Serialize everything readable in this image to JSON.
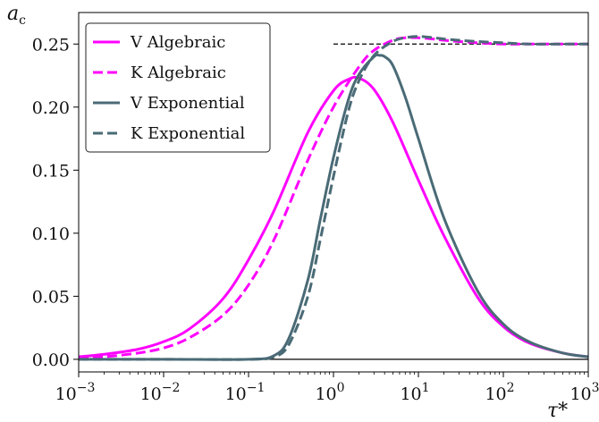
{
  "chart_data": {
    "type": "line",
    "x_scale": "log",
    "xlim": [
      0.001,
      1000
    ],
    "ylim": [
      -0.01,
      0.275
    ],
    "grid": false,
    "xlabel": "τ*",
    "ylabel": "a",
    "ylabel_subscript": "c",
    "x_ticks": [
      {
        "value": 0.001,
        "base": "10",
        "exp": "−3"
      },
      {
        "value": 0.01,
        "base": "10",
        "exp": "−2"
      },
      {
        "value": 0.1,
        "base": "10",
        "exp": "−1"
      },
      {
        "value": 1,
        "base": "10",
        "exp": "0"
      },
      {
        "value": 10,
        "base": "10",
        "exp": "1"
      },
      {
        "value": 100,
        "base": "10",
        "exp": "2"
      },
      {
        "value": 1000,
        "base": "10",
        "exp": "3"
      }
    ],
    "y_ticks": [
      {
        "value": 0.0,
        "label": "0.00"
      },
      {
        "value": 0.05,
        "label": "0.05"
      },
      {
        "value": 0.1,
        "label": "0.10"
      },
      {
        "value": 0.15,
        "label": "0.15"
      },
      {
        "value": 0.2,
        "label": "0.20"
      },
      {
        "value": 0.25,
        "label": "0.25"
      }
    ],
    "reference_lines": [
      {
        "axis": "y",
        "value": 0.25,
        "style": "dashed",
        "color": "#000000",
        "x_range": [
          1,
          1000
        ]
      },
      {
        "axis": "y",
        "value": 0.0,
        "style": "solid",
        "color": "#000000"
      }
    ],
    "legend_position": "top-left",
    "series": [
      {
        "name": "V Algebraic",
        "color": "#ff00ff",
        "dash": "solid",
        "x": [
          0.001,
          0.002,
          0.005,
          0.01,
          0.02,
          0.05,
          0.1,
          0.2,
          0.5,
          1,
          1.5,
          2,
          3,
          5,
          10,
          20,
          50,
          100,
          200,
          500,
          1000
        ],
        "y": [
          0.002,
          0.004,
          0.008,
          0.014,
          0.024,
          0.048,
          0.079,
          0.118,
          0.18,
          0.213,
          0.222,
          0.223,
          0.214,
          0.188,
          0.142,
          0.098,
          0.049,
          0.026,
          0.013,
          0.005,
          0.002
        ]
      },
      {
        "name": "K Algebraic",
        "color": "#ff00ff",
        "dash": "dashed",
        "x": [
          0.001,
          0.002,
          0.005,
          0.01,
          0.02,
          0.05,
          0.1,
          0.2,
          0.5,
          1,
          2,
          3,
          5,
          7,
          10,
          15,
          20,
          30,
          50,
          100,
          200,
          500,
          1000
        ],
        "y": [
          0.001,
          0.002,
          0.005,
          0.009,
          0.017,
          0.035,
          0.059,
          0.095,
          0.158,
          0.2,
          0.232,
          0.245,
          0.253,
          0.255,
          0.255,
          0.254,
          0.253,
          0.252,
          0.251,
          0.25,
          0.25,
          0.25,
          0.25
        ]
      },
      {
        "name": "V Exponential",
        "color": "#4a6b76",
        "dash": "solid",
        "x": [
          0.001,
          0.01,
          0.1,
          0.2,
          0.3,
          0.5,
          0.7,
          1,
          1.5,
          2,
          3,
          3.5,
          4,
          5,
          7,
          10,
          20,
          50,
          100,
          200,
          500,
          1000
        ],
        "y": [
          0.0,
          0.0,
          0.0,
          0.003,
          0.017,
          0.063,
          0.111,
          0.16,
          0.206,
          0.226,
          0.24,
          0.241,
          0.24,
          0.233,
          0.208,
          0.175,
          0.112,
          0.054,
          0.028,
          0.014,
          0.005,
          0.002
        ]
      },
      {
        "name": "K Exponential",
        "color": "#4a6b76",
        "dash": "dashed",
        "x": [
          0.001,
          0.01,
          0.1,
          0.2,
          0.3,
          0.5,
          0.7,
          1,
          1.5,
          2,
          3,
          5,
          7,
          10,
          15,
          20,
          30,
          50,
          100,
          200,
          500,
          1000
        ],
        "y": [
          0.0,
          0.0,
          0.0,
          0.002,
          0.012,
          0.05,
          0.095,
          0.145,
          0.197,
          0.221,
          0.241,
          0.252,
          0.255,
          0.256,
          0.255,
          0.254,
          0.253,
          0.252,
          0.251,
          0.25,
          0.25,
          0.25
        ]
      }
    ]
  }
}
